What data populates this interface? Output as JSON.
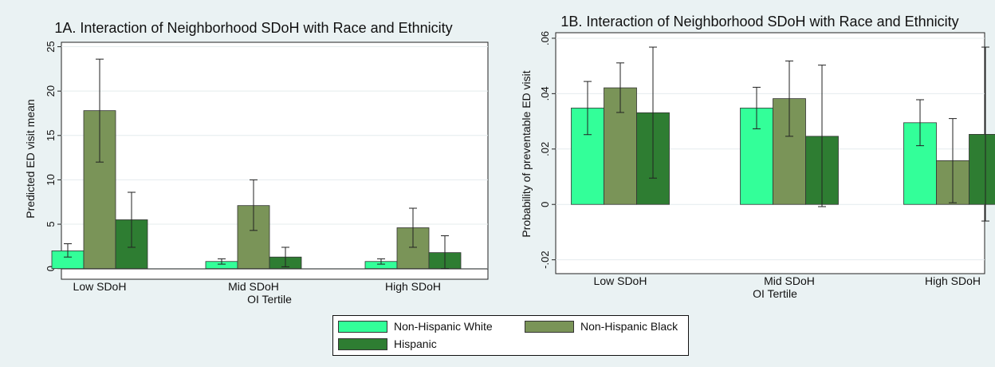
{
  "legend": [
    {
      "label": "Non-Hispanic White",
      "color": "#33ff99"
    },
    {
      "label": "Non-Hispanic Black",
      "color": "#7a9458"
    },
    {
      "label": "Hispanic",
      "color": "#2e7d32"
    }
  ],
  "chart_data": [
    {
      "type": "bar",
      "title": "1A. Interaction of Neighborhood SDoH with Race and Ethnicity",
      "xlabel": "OI Tertile",
      "ylabel": "Predicted ED visit mean",
      "categories": [
        "Low SDoH",
        "Mid SDoH",
        "High SDoH"
      ],
      "ylim": [
        0,
        25
      ],
      "yticks": [
        "0",
        "5",
        "10",
        "15",
        "20",
        "25"
      ],
      "grid": true,
      "error_bars": true,
      "series": [
        {
          "name": "Non-Hispanic White",
          "values": [
            2.0,
            0.8,
            0.8
          ],
          "ci_low": [
            1.3,
            0.5,
            0.5
          ],
          "ci_high": [
            2.8,
            1.1,
            1.1
          ]
        },
        {
          "name": "Non-Hispanic Black",
          "values": [
            17.8,
            7.1,
            4.6
          ],
          "ci_low": [
            12.0,
            4.3,
            2.4
          ],
          "ci_high": [
            23.6,
            10.0,
            6.8
          ]
        },
        {
          "name": "Hispanic",
          "values": [
            5.5,
            1.3,
            1.8
          ],
          "ci_low": [
            2.4,
            0.2,
            0.0
          ],
          "ci_high": [
            8.6,
            2.4,
            3.7
          ]
        }
      ]
    },
    {
      "type": "bar",
      "title": "1B. Interaction of Neighborhood SDoH with Race and Ethnicity",
      "xlabel": "OI Tertile",
      "ylabel": "Probability of preventable ED visit",
      "categories": [
        "Low SDoH",
        "Mid SDoH",
        "High SDoH"
      ],
      "ylim": [
        -0.025,
        0.062
      ],
      "yticks": [
        "-.02",
        "0",
        ".02",
        ".04",
        ".06"
      ],
      "grid": true,
      "error_bars": true,
      "series": [
        {
          "name": "Non-Hispanic White",
          "values": [
            0.0348,
            0.0348,
            0.0295
          ],
          "ci_low": [
            0.0252,
            0.0273,
            0.0212
          ],
          "ci_high": [
            0.0444,
            0.0423,
            0.0378
          ]
        },
        {
          "name": "Non-Hispanic Black",
          "values": [
            0.0421,
            0.0382,
            0.0158
          ],
          "ci_low": [
            0.0332,
            0.0246,
            0.0006
          ],
          "ci_high": [
            0.0511,
            0.0518,
            0.031
          ]
        },
        {
          "name": "Hispanic",
          "values": [
            0.0331,
            0.0246,
            0.0253
          ],
          "ci_low": [
            0.0095,
            -0.0008,
            -0.006
          ],
          "ci_high": [
            0.0568,
            0.0503,
            0.0568
          ]
        }
      ]
    }
  ]
}
